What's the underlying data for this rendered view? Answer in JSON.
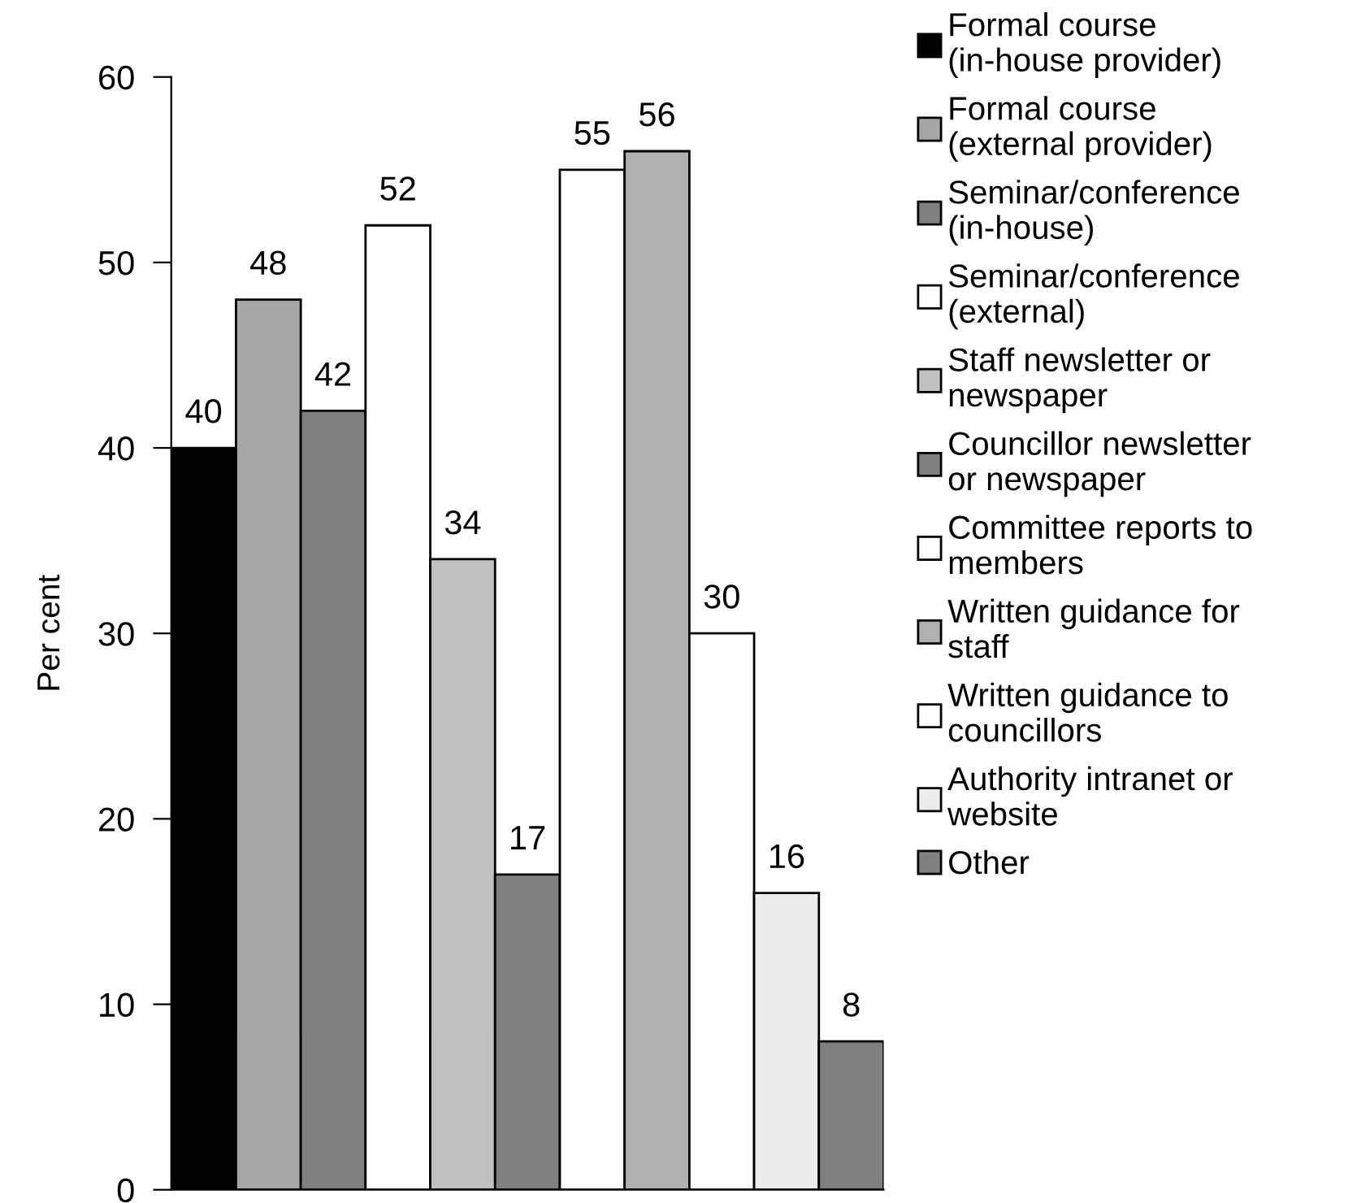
{
  "chart_data": {
    "type": "bar",
    "ylabel": "Per cent",
    "categories": [
      null
    ],
    "series": [
      {
        "name": "Formal course (in-house provider)",
        "color": "#000000",
        "values": [
          40
        ]
      },
      {
        "name": "Formal course (external provider)",
        "color": "#a6a6a6",
        "values": [
          48
        ]
      },
      {
        "name": "Seminar/conference (in-house)",
        "color": "#808080",
        "values": [
          42
        ]
      },
      {
        "name": "Seminar/conference (external)",
        "color": "#ffffff",
        "values": [
          52
        ]
      },
      {
        "name": "Staff newsletter or newspaper",
        "color": "#c0c0c0",
        "values": [
          34
        ]
      },
      {
        "name": "Councillor newsletter or newspaper",
        "color": "#808080",
        "values": [
          17
        ]
      },
      {
        "name": "Committee reports to members",
        "color": "#ffffff",
        "values": [
          55
        ]
      },
      {
        "name": "Written guidance for staff",
        "color": "#b0b0b0",
        "values": [
          56
        ]
      },
      {
        "name": "Written guidance to councillors",
        "color": "#ffffff",
        "values": [
          30
        ]
      },
      {
        "name": "Authority intranet or website",
        "color": "#ececec",
        "values": [
          16
        ]
      },
      {
        "name": "Other",
        "color": "#808080",
        "values": [
          8
        ]
      }
    ],
    "ylim": [
      0,
      60
    ],
    "yticks": [
      0,
      10,
      20,
      30,
      40,
      50,
      60
    ],
    "data_labels": true,
    "legend": "right",
    "tick_labels": "y",
    "grid": false
  }
}
